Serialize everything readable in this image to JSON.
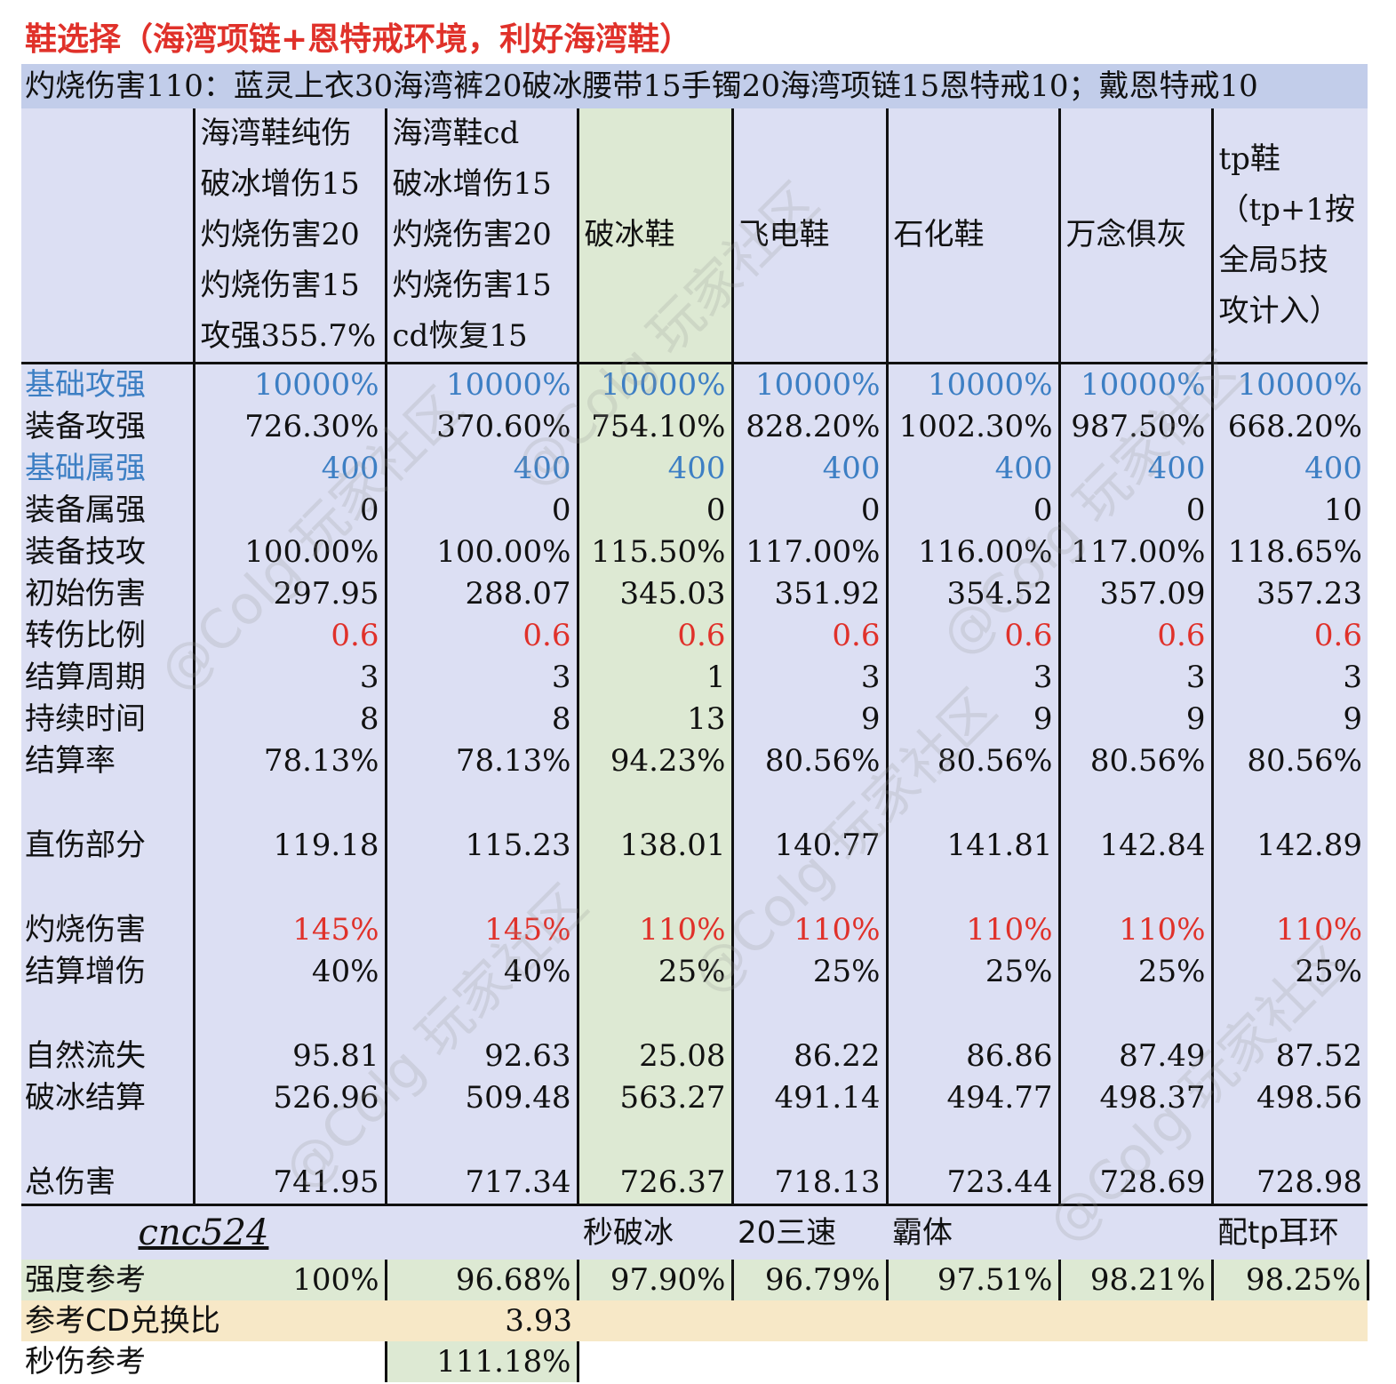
{
  "title": "鞋选择（海湾项链+恩特戒环境，利好海湾鞋）",
  "subtitle": "灼烧伤害110：蓝灵上衣30海湾裤20破冰腰带15手镯20海湾项链15恩特戒10；戴恩特戒10",
  "headers": [
    [
      "海湾鞋纯伤",
      "破冰增伤15",
      "灼烧伤害20",
      "灼烧伤害15",
      "攻强355.7%"
    ],
    [
      "海湾鞋cd",
      "破冰增伤15",
      "灼烧伤害20",
      "灼烧伤害15",
      "cd恢复15"
    ],
    [
      "破冰鞋"
    ],
    [
      "飞电鞋"
    ],
    [
      "石化鞋"
    ],
    [
      "万念俱灰"
    ],
    [
      "tp鞋",
      "（tp+1按",
      "全局5技",
      "攻计入）"
    ]
  ],
  "rows": [
    {
      "label": "基础攻强",
      "values": [
        "10000%",
        "10000%",
        "10000%",
        "10000%",
        "10000%",
        "10000%",
        "10000%"
      ]
    },
    {
      "label": "装备攻强",
      "values": [
        "726.30%",
        "370.60%",
        "754.10%",
        "828.20%",
        "1002.30%",
        "987.50%",
        "668.20%"
      ]
    },
    {
      "label": "基础属强",
      "values": [
        "400",
        "400",
        "400",
        "400",
        "400",
        "400",
        "400"
      ]
    },
    {
      "label": "装备属强",
      "values": [
        "0",
        "0",
        "0",
        "0",
        "0",
        "0",
        "10"
      ]
    },
    {
      "label": "装备技攻",
      "values": [
        "100.00%",
        "100.00%",
        "115.50%",
        "117.00%",
        "116.00%",
        "117.00%",
        "118.65%"
      ]
    },
    {
      "label": "初始伤害",
      "values": [
        "297.95",
        "288.07",
        "345.03",
        "351.92",
        "354.52",
        "357.09",
        "357.23"
      ]
    },
    {
      "label": "转伤比例",
      "values": [
        "0.6",
        "0.6",
        "0.6",
        "0.6",
        "0.6",
        "0.6",
        "0.6"
      ]
    },
    {
      "label": "结算周期",
      "values": [
        "3",
        "3",
        "1",
        "3",
        "3",
        "3",
        "3"
      ]
    },
    {
      "label": "持续时间",
      "values": [
        "8",
        "8",
        "13",
        "9",
        "9",
        "9",
        "9"
      ]
    },
    {
      "label": "结算率",
      "values": [
        "78.13%",
        "78.13%",
        "94.23%",
        "80.56%",
        "80.56%",
        "80.56%",
        "80.56%"
      ]
    },
    {
      "label": "直伤部分",
      "values": [
        "119.18",
        "115.23",
        "138.01",
        "140.77",
        "141.81",
        "142.84",
        "142.89"
      ]
    },
    {
      "label": "灼烧伤害",
      "values": [
        "145%",
        "145%",
        "110%",
        "110%",
        "110%",
        "110%",
        "110%"
      ]
    },
    {
      "label": "结算增伤",
      "values": [
        "40%",
        "40%",
        "25%",
        "25%",
        "25%",
        "25%",
        "25%"
      ]
    },
    {
      "label": "自然流失",
      "values": [
        "95.81",
        "92.63",
        "25.08",
        "86.22",
        "86.86",
        "87.49",
        "87.52"
      ]
    },
    {
      "label": "破冰结算",
      "values": [
        "526.96",
        "509.48",
        "563.27",
        "491.14",
        "494.77",
        "498.37",
        "498.56"
      ]
    },
    {
      "label": "总伤害",
      "values": [
        "741.95",
        "717.34",
        "726.37",
        "718.13",
        "723.44",
        "728.69",
        "728.98"
      ]
    }
  ],
  "footer": {
    "author": "cnc524",
    "notes": [
      "",
      "秒破冰",
      "20三速",
      "霸体",
      "",
      "配tp耳环"
    ]
  },
  "strength": {
    "label": "强度参考",
    "values": [
      "100%",
      "96.68%",
      "97.90%",
      "96.79%",
      "97.51%",
      "98.21%",
      "98.25%"
    ]
  },
  "cd_ratio": {
    "label": "参考CD兑换比",
    "value": "3.93"
  },
  "dps_ref": {
    "label": "秒伤参考",
    "value": "111.18%"
  },
  "watermark": "@Colg 玩家社区"
}
